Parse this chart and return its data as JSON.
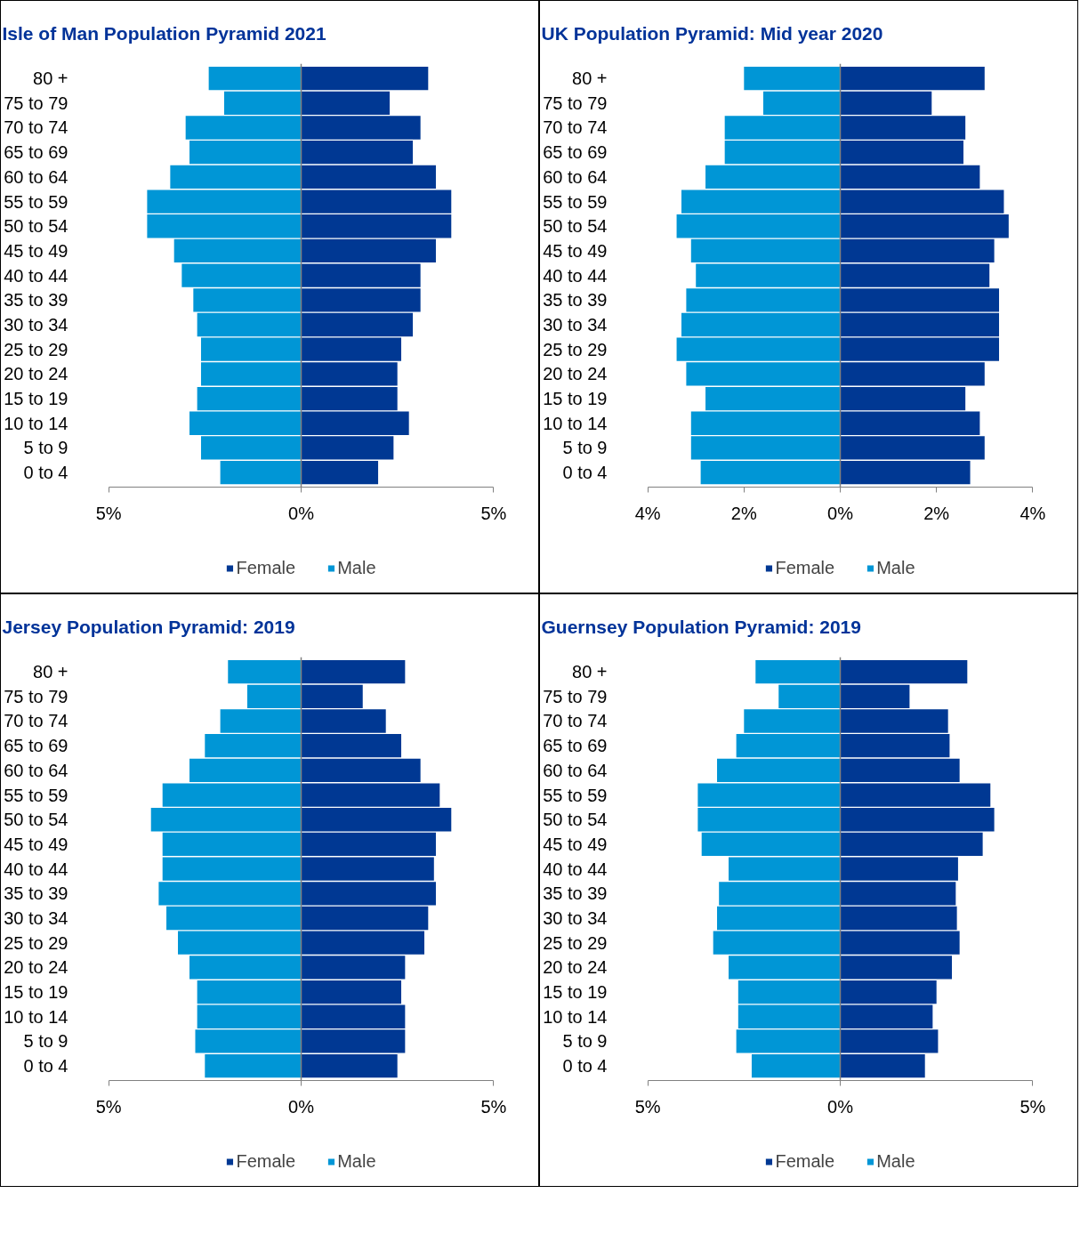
{
  "chart_data": [
    {
      "type": "bar",
      "stacked": true,
      "orientation": "horizontal",
      "title": "Isle of Man Population Pyramid 2021",
      "categories": [
        "80 +",
        "75 to 79",
        "70 to 74",
        "65 to 69",
        "60 to 64",
        "55 to 59",
        "50 to 54",
        "45 to 49",
        "40 to 44",
        "35 to 39",
        "30 to 34",
        "25 to 29",
        "20 to 24",
        "15 to 19",
        "10 to 14",
        "5 to 9",
        "0 to 4"
      ],
      "xlim": [
        -5,
        5
      ],
      "xticks": [
        {
          "value": -5,
          "label": "5%"
        },
        {
          "value": 0,
          "label": "0%"
        },
        {
          "value": 5,
          "label": "5%"
        }
      ],
      "legend": "bottom",
      "series": [
        {
          "name": "Female",
          "color": "#003893",
          "values": [
            3.3,
            2.3,
            3.1,
            2.9,
            3.5,
            3.9,
            3.9,
            3.5,
            3.1,
            3.1,
            2.9,
            2.6,
            2.5,
            2.5,
            2.8,
            2.4,
            2.0
          ]
        },
        {
          "name": "Male",
          "color": "#0096d6",
          "values": [
            -2.4,
            -2.0,
            -3.0,
            -2.9,
            -3.4,
            -4.0,
            -4.0,
            -3.3,
            -3.1,
            -2.8,
            -2.7,
            -2.6,
            -2.6,
            -2.7,
            -2.9,
            -2.6,
            -2.1
          ]
        }
      ]
    },
    {
      "type": "bar",
      "stacked": true,
      "orientation": "horizontal",
      "title": "UK Population Pyramid: Mid year 2020",
      "categories": [
        "80 +",
        "75 to 79",
        "70 to 74",
        "65 to 69",
        "60 to 64",
        "55 to 59",
        "50 to 54",
        "45 to 49",
        "40 to 44",
        "35 to 39",
        "30 to 34",
        "25 to 29",
        "20 to 24",
        "15 to 19",
        "10 to 14",
        "5 to 9",
        "0 to 4"
      ],
      "xlim": [
        -4,
        4
      ],
      "xticks": [
        {
          "value": -4,
          "label": "4%"
        },
        {
          "value": -2,
          "label": "2%"
        },
        {
          "value": 0,
          "label": "0%"
        },
        {
          "value": 2,
          "label": "2%"
        },
        {
          "value": 4,
          "label": "4%"
        }
      ],
      "legend": "bottom",
      "series": [
        {
          "name": "Female",
          "color": "#003893",
          "values": [
            3.0,
            1.9,
            2.6,
            2.56,
            2.9,
            3.4,
            3.5,
            3.2,
            3.1,
            3.3,
            3.3,
            3.3,
            3.0,
            2.6,
            2.9,
            3.0,
            2.7
          ]
        },
        {
          "name": "Male",
          "color": "#0096d6",
          "values": [
            -2.0,
            -1.6,
            -2.4,
            -2.4,
            -2.8,
            -3.3,
            -3.4,
            -3.1,
            -3.0,
            -3.2,
            -3.3,
            -3.4,
            -3.2,
            -2.8,
            -3.1,
            -3.1,
            -2.9
          ]
        }
      ]
    },
    {
      "type": "bar",
      "stacked": true,
      "orientation": "horizontal",
      "title": "Jersey Population Pyramid: 2019",
      "categories": [
        "80 +",
        "75 to 79",
        "70 to 74",
        "65 to 69",
        "60 to 64",
        "55 to 59",
        "50 to 54",
        "45 to 49",
        "40 to 44",
        "35 to 39",
        "30 to 34",
        "25 to 29",
        "20 to 24",
        "15 to 19",
        "10 to 14",
        "5 to 9",
        "0 to 4"
      ],
      "xlim": [
        -5,
        5
      ],
      "xticks": [
        {
          "value": -5,
          "label": "5%"
        },
        {
          "value": 0,
          "label": "0%"
        },
        {
          "value": 5,
          "label": "5%"
        }
      ],
      "legend": "bottom",
      "series": [
        {
          "name": "Female",
          "color": "#003893",
          "values": [
            2.7,
            1.6,
            2.2,
            2.6,
            3.1,
            3.6,
            3.9,
            3.5,
            3.45,
            3.5,
            3.3,
            3.2,
            2.7,
            2.6,
            2.7,
            2.7,
            2.5
          ]
        },
        {
          "name": "Male",
          "color": "#0096d6",
          "values": [
            -1.9,
            -1.4,
            -2.1,
            -2.5,
            -2.9,
            -3.6,
            -3.9,
            -3.6,
            -3.6,
            -3.7,
            -3.5,
            -3.2,
            -2.9,
            -2.7,
            -2.7,
            -2.75,
            -2.5
          ]
        }
      ]
    },
    {
      "type": "bar",
      "stacked": true,
      "orientation": "horizontal",
      "title": "Guernsey Population Pyramid: 2019",
      "categories": [
        "80 +",
        "75 to 79",
        "70 to 74",
        "65 to 69",
        "60 to 64",
        "55 to 59",
        "50 to 54",
        "45 to 49",
        "40 to 44",
        "35 to 39",
        "30 to 34",
        "25 to 29",
        "20 to 24",
        "15 to 19",
        "10 to 14",
        "5 to 9",
        "0 to 4"
      ],
      "xlim": [
        -5,
        5
      ],
      "xticks": [
        {
          "value": -5,
          "label": "5%"
        },
        {
          "value": 0,
          "label": "0%"
        },
        {
          "value": 5,
          "label": "5%"
        }
      ],
      "legend": "bottom",
      "series": [
        {
          "name": "Female",
          "color": "#003893",
          "values": [
            3.3,
            1.8,
            2.8,
            2.84,
            3.1,
            3.9,
            4.0,
            3.7,
            3.06,
            3.0,
            3.03,
            3.1,
            2.9,
            2.5,
            2.4,
            2.54,
            2.2
          ]
        },
        {
          "name": "Male",
          "color": "#0096d6",
          "values": [
            -2.2,
            -1.6,
            -2.5,
            -2.7,
            -3.2,
            -3.7,
            -3.7,
            -3.6,
            -2.9,
            -3.15,
            -3.2,
            -3.3,
            -2.9,
            -2.65,
            -2.65,
            -2.7,
            -2.3
          ]
        }
      ]
    }
  ]
}
